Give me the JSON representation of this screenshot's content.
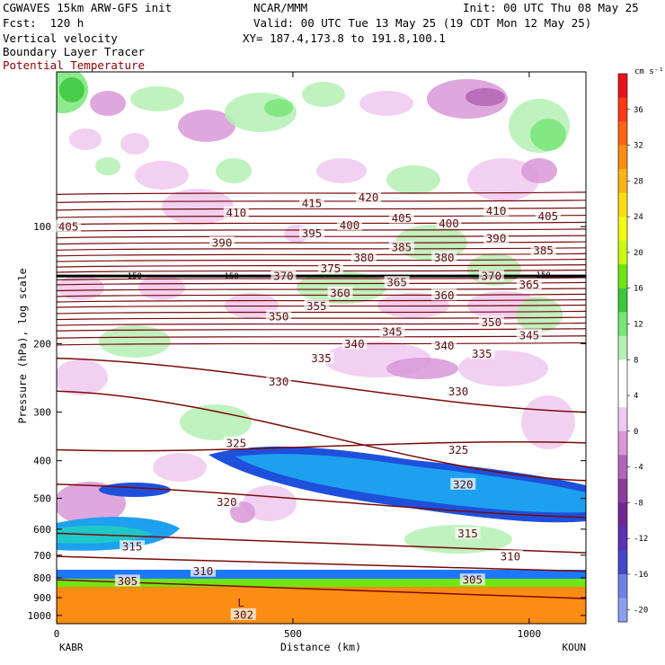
{
  "header": {
    "model": "CGWAVES 15km ARW-GFS init",
    "org": "NCAR/MMM",
    "init": "Init: 00 UTC Thu 08 May 25",
    "fcst": "Fcst:  120 h",
    "valid": "Valid: 00 UTC Tue 13 May 25 (19 CDT Mon 12 May 25)",
    "field1": "Vertical velocity",
    "field2": "Boundary Layer Tracer",
    "field3": "Potential Temperature",
    "xy": "XY= 187.4,173.8 to 191.8,100.1"
  },
  "colors": {
    "theta_contour": "#7a0a0a",
    "tropopause_line": "#000000",
    "axis": "#000000"
  },
  "chart_data": {
    "type": "heatmap",
    "title": "Vertical velocity",
    "xlabel": "Distance (km)",
    "ylabel": "Pressure (hPa), log scale",
    "x_ticks": [
      0,
      500,
      1000
    ],
    "xlim": [
      0,
      1120
    ],
    "y_ticks": [
      100,
      200,
      300,
      400,
      500,
      600,
      700,
      800,
      900,
      1000
    ],
    "ylim": [
      1050,
      40
    ],
    "y_scale": "log",
    "endpoints": {
      "left": "KABR",
      "right": "KOUN"
    },
    "colorbar": {
      "unit": "cm s⁻¹",
      "tick_labels": [
        "36",
        "32",
        "28",
        "24",
        "20",
        "16",
        "12",
        "8",
        "4",
        "0",
        "-4",
        "-8",
        "-12",
        "-16",
        "-20"
      ],
      "colors": [
        "#e8141c",
        "#fb3a14",
        "#fb6414",
        "#fb8c14",
        "#fbb414",
        "#fbdc14",
        "#f0fa14",
        "#c8fa14",
        "#6ee614",
        "#3cc83c",
        "#78e678",
        "#b4f0b4",
        "#ffffff",
        "#ffffff",
        "#f0c8f0",
        "#d898d8",
        "#b464b4",
        "#8c3c9c",
        "#6e2896",
        "#5a32b4",
        "#4646c8",
        "#6e82e6",
        "#8ca0f0"
      ]
    },
    "theta_contours": [
      {
        "label": "302",
        "x": 395,
        "p": 995
      },
      {
        "label": "305",
        "x": 150,
        "p": 815
      },
      {
        "label": "305",
        "x": 880,
        "p": 810
      },
      {
        "label": "310",
        "x": 310,
        "p": 770
      },
      {
        "label": "310",
        "x": 960,
        "p": 705
      },
      {
        "label": "315",
        "x": 160,
        "p": 665
      },
      {
        "label": "315",
        "x": 870,
        "p": 615
      },
      {
        "label": "320",
        "x": 360,
        "p": 510
      },
      {
        "label": "320",
        "x": 860,
        "p": 460
      },
      {
        "label": "325",
        "x": 380,
        "p": 360
      },
      {
        "label": "325",
        "x": 850,
        "p": 375
      },
      {
        "label": "330",
        "x": 470,
        "p": 250
      },
      {
        "label": "330",
        "x": 850,
        "p": 265
      },
      {
        "label": "335",
        "x": 560,
        "p": 218
      },
      {
        "label": "335",
        "x": 900,
        "p": 212
      },
      {
        "label": "340",
        "x": 630,
        "p": 200
      },
      {
        "label": "340",
        "x": 820,
        "p": 202
      },
      {
        "label": "345",
        "x": 710,
        "p": 186
      },
      {
        "label": "345",
        "x": 1000,
        "p": 190
      },
      {
        "label": "350",
        "x": 470,
        "p": 170
      },
      {
        "label": "350",
        "x": 920,
        "p": 176
      },
      {
        "label": "355",
        "x": 550,
        "p": 160
      },
      {
        "label": "360",
        "x": 600,
        "p": 148
      },
      {
        "label": "360",
        "x": 820,
        "p": 150
      },
      {
        "label": "365",
        "x": 720,
        "p": 139
      },
      {
        "label": "365",
        "x": 1000,
        "p": 141
      },
      {
        "label": "370",
        "x": 480,
        "p": 134
      },
      {
        "label": "370",
        "x": 920,
        "p": 134
      },
      {
        "label": "375",
        "x": 580,
        "p": 128
      },
      {
        "label": "380",
        "x": 650,
        "p": 120
      },
      {
        "label": "380",
        "x": 820,
        "p": 120
      },
      {
        "label": "385",
        "x": 730,
        "p": 113
      },
      {
        "label": "385",
        "x": 1030,
        "p": 115
      },
      {
        "label": "390",
        "x": 350,
        "p": 110
      },
      {
        "label": "390",
        "x": 930,
        "p": 107
      },
      {
        "label": "395",
        "x": 540,
        "p": 104
      },
      {
        "label": "400",
        "x": 620,
        "p": 99
      },
      {
        "label": "400",
        "x": 830,
        "p": 98
      },
      {
        "label": "405",
        "x": 25,
        "p": 100
      },
      {
        "label": "405",
        "x": 730,
        "p": 95
      },
      {
        "label": "405",
        "x": 1040,
        "p": 94
      },
      {
        "label": "410",
        "x": 380,
        "p": 92
      },
      {
        "label": "410",
        "x": 930,
        "p": 91
      },
      {
        "label": "415",
        "x": 540,
        "p": 87
      },
      {
        "label": "420",
        "x": 660,
        "p": 84
      }
    ],
    "tropopause_labels": [
      {
        "label": "150",
        "x": 165,
        "p": 134
      },
      {
        "label": "150",
        "x": 370,
        "p": 134
      },
      {
        "label": "150",
        "x": 1030,
        "p": 133
      }
    ],
    "annotations": [
      {
        "text": "L",
        "x": 390,
        "p": 950
      }
    ]
  }
}
